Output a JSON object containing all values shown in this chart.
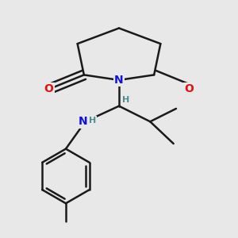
{
  "background_color": "#e8e8e8",
  "bond_color": "#1a1a1a",
  "bond_width": 1.8,
  "atom_colors": {
    "N": "#1010e0",
    "O": "#e01010",
    "H_label": "#4a9090"
  },
  "figsize": [
    3.0,
    3.0
  ],
  "dpi": 100
}
